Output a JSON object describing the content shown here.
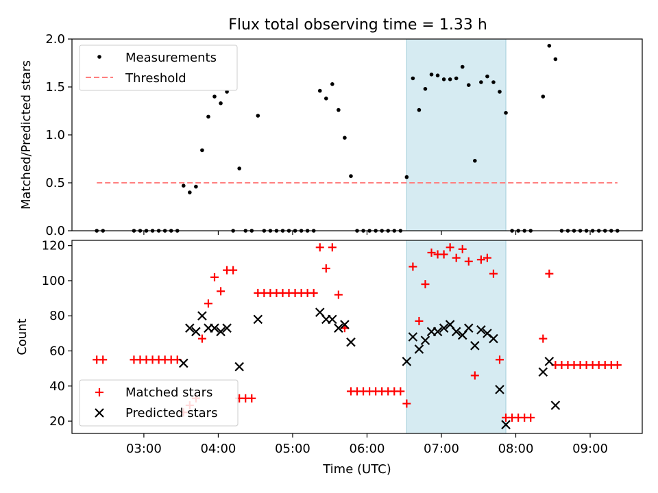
{
  "title": "Flux total observing time = 1.33 h",
  "chart_data": [
    {
      "type": "scatter",
      "ylabel": "Matched/Predicted stars",
      "ylim": [
        0,
        2.0
      ],
      "yticks": [
        "0.0",
        "0.5",
        "1.0",
        "1.5",
        "2.0"
      ],
      "xlim": [
        "02:02",
        "09:42"
      ],
      "highlight_span": [
        "06:32",
        "07:52"
      ],
      "highlight_color": "#add8e6",
      "legend": [
        {
          "label": "Measurements",
          "marker": "dot",
          "color": "#000000"
        },
        {
          "label": "Threshold",
          "marker": "dashed-line",
          "color": "#ff7f7f"
        }
      ],
      "threshold": {
        "value": 0.5,
        "x_range": [
          "02:22",
          "09:22"
        ]
      },
      "series": [
        {
          "name": "Measurements",
          "points": [
            [
              "02:22",
              0
            ],
            [
              "02:27",
              0
            ],
            [
              "02:52",
              0
            ],
            [
              "02:57",
              0
            ],
            [
              "03:02",
              0
            ],
            [
              "03:07",
              0
            ],
            [
              "03:12",
              0
            ],
            [
              "03:17",
              0
            ],
            [
              "03:22",
              0
            ],
            [
              "03:27",
              0
            ],
            [
              "03:32",
              0.47
            ],
            [
              "03:37",
              0.4
            ],
            [
              "03:42",
              0.46
            ],
            [
              "03:47",
              0.84
            ],
            [
              "03:52",
              1.19
            ],
            [
              "03:57",
              1.4
            ],
            [
              "04:02",
              1.33
            ],
            [
              "04:07",
              1.45
            ],
            [
              "04:12",
              0
            ],
            [
              "04:17",
              0.65
            ],
            [
              "04:22",
              0
            ],
            [
              "04:27",
              0
            ],
            [
              "04:32",
              1.2
            ],
            [
              "04:37",
              0
            ],
            [
              "04:42",
              0
            ],
            [
              "04:47",
              0
            ],
            [
              "04:52",
              0
            ],
            [
              "04:57",
              0
            ],
            [
              "05:02",
              0
            ],
            [
              "05:07",
              0
            ],
            [
              "05:12",
              0
            ],
            [
              "05:17",
              0
            ],
            [
              "05:22",
              1.46
            ],
            [
              "05:27",
              1.38
            ],
            [
              "05:32",
              1.53
            ],
            [
              "05:37",
              1.26
            ],
            [
              "05:42",
              0.97
            ],
            [
              "05:47",
              0.57
            ],
            [
              "05:52",
              0
            ],
            [
              "05:57",
              0
            ],
            [
              "06:02",
              0
            ],
            [
              "06:07",
              0
            ],
            [
              "06:12",
              0
            ],
            [
              "06:17",
              0
            ],
            [
              "06:22",
              0
            ],
            [
              "06:27",
              0
            ],
            [
              "06:32",
              0.56
            ],
            [
              "06:37",
              1.59
            ],
            [
              "06:42",
              1.26
            ],
            [
              "06:47",
              1.48
            ],
            [
              "06:52",
              1.63
            ],
            [
              "06:57",
              1.62
            ],
            [
              "07:02",
              1.58
            ],
            [
              "07:07",
              1.58
            ],
            [
              "07:12",
              1.59
            ],
            [
              "07:17",
              1.71
            ],
            [
              "07:22",
              1.52
            ],
            [
              "07:27",
              0.73
            ],
            [
              "07:32",
              1.55
            ],
            [
              "07:37",
              1.61
            ],
            [
              "07:42",
              1.55
            ],
            [
              "07:47",
              1.45
            ],
            [
              "07:52",
              1.23
            ],
            [
              "07:57",
              0
            ],
            [
              "08:02",
              0
            ],
            [
              "08:07",
              0
            ],
            [
              "08:12",
              0
            ],
            [
              "08:22",
              1.4
            ],
            [
              "08:27",
              1.93
            ],
            [
              "08:32",
              1.79
            ],
            [
              "08:37",
              0
            ],
            [
              "08:42",
              0
            ],
            [
              "08:47",
              0
            ],
            [
              "08:52",
              0
            ],
            [
              "08:57",
              0
            ],
            [
              "09:02",
              0
            ],
            [
              "09:07",
              0
            ],
            [
              "09:12",
              0
            ],
            [
              "09:17",
              0
            ],
            [
              "09:22",
              0
            ]
          ]
        }
      ]
    },
    {
      "type": "scatter",
      "ylabel": "Count",
      "xlabel": "Time (UTC)",
      "ylim": [
        13,
        123
      ],
      "yticks": [
        "20",
        "40",
        "60",
        "80",
        "100",
        "120"
      ],
      "xticks": [
        "03:00",
        "04:00",
        "05:00",
        "06:00",
        "07:00",
        "08:00",
        "09:00"
      ],
      "xlim": [
        "02:02",
        "09:42"
      ],
      "highlight_span": [
        "06:32",
        "07:52"
      ],
      "highlight_color": "#add8e6",
      "legend": [
        {
          "label": "Matched stars",
          "marker": "plus",
          "color": "#ff0000"
        },
        {
          "label": "Predicted stars",
          "marker": "x",
          "color": "#000000"
        }
      ],
      "series": [
        {
          "name": "Matched stars",
          "points": [
            [
              "02:22",
              55
            ],
            [
              "02:27",
              55
            ],
            [
              "02:52",
              55
            ],
            [
              "02:57",
              55
            ],
            [
              "03:02",
              55
            ],
            [
              "03:07",
              55
            ],
            [
              "03:12",
              55
            ],
            [
              "03:17",
              55
            ],
            [
              "03:22",
              55
            ],
            [
              "03:27",
              55
            ],
            [
              "03:32",
              25
            ],
            [
              "03:37",
              29
            ],
            [
              "03:42",
              33
            ],
            [
              "03:47",
              67
            ],
            [
              "03:52",
              87
            ],
            [
              "03:57",
              102
            ],
            [
              "04:02",
              94
            ],
            [
              "04:07",
              106
            ],
            [
              "04:12",
              106
            ],
            [
              "04:17",
              33
            ],
            [
              "04:22",
              33
            ],
            [
              "04:27",
              33
            ],
            [
              "04:32",
              93
            ],
            [
              "04:37",
              93
            ],
            [
              "04:42",
              93
            ],
            [
              "04:47",
              93
            ],
            [
              "04:52",
              93
            ],
            [
              "04:57",
              93
            ],
            [
              "05:02",
              93
            ],
            [
              "05:07",
              93
            ],
            [
              "05:12",
              93
            ],
            [
              "05:17",
              93
            ],
            [
              "05:22",
              119
            ],
            [
              "05:27",
              107
            ],
            [
              "05:32",
              119
            ],
            [
              "05:37",
              92
            ],
            [
              "05:42",
              73
            ],
            [
              "05:47",
              37
            ],
            [
              "05:52",
              37
            ],
            [
              "05:57",
              37
            ],
            [
              "06:02",
              37
            ],
            [
              "06:07",
              37
            ],
            [
              "06:12",
              37
            ],
            [
              "06:17",
              37
            ],
            [
              "06:22",
              37
            ],
            [
              "06:27",
              37
            ],
            [
              "06:32",
              30
            ],
            [
              "06:37",
              108
            ],
            [
              "06:42",
              77
            ],
            [
              "06:47",
              98
            ],
            [
              "06:52",
              116
            ],
            [
              "06:57",
              115
            ],
            [
              "07:02",
              115
            ],
            [
              "07:07",
              119
            ],
            [
              "07:12",
              113
            ],
            [
              "07:17",
              118
            ],
            [
              "07:22",
              111
            ],
            [
              "07:27",
              46
            ],
            [
              "07:32",
              112
            ],
            [
              "07:37",
              113
            ],
            [
              "07:42",
              104
            ],
            [
              "07:47",
              55
            ],
            [
              "07:52",
              22
            ],
            [
              "07:57",
              22
            ],
            [
              "08:02",
              22
            ],
            [
              "08:07",
              22
            ],
            [
              "08:12",
              22
            ],
            [
              "08:22",
              67
            ],
            [
              "08:27",
              104
            ],
            [
              "08:32",
              52
            ],
            [
              "08:37",
              52
            ],
            [
              "08:42",
              52
            ],
            [
              "08:47",
              52
            ],
            [
              "08:52",
              52
            ],
            [
              "08:57",
              52
            ],
            [
              "09:02",
              52
            ],
            [
              "09:07",
              52
            ],
            [
              "09:12",
              52
            ],
            [
              "09:17",
              52
            ],
            [
              "09:22",
              52
            ]
          ]
        },
        {
          "name": "Predicted stars",
          "points": [
            [
              "03:32",
              53
            ],
            [
              "03:37",
              73
            ],
            [
              "03:42",
              71
            ],
            [
              "03:47",
              80
            ],
            [
              "03:52",
              73
            ],
            [
              "03:57",
              73
            ],
            [
              "04:02",
              71
            ],
            [
              "04:07",
              73
            ],
            [
              "04:17",
              51
            ],
            [
              "04:32",
              78
            ],
            [
              "05:22",
              82
            ],
            [
              "05:27",
              78
            ],
            [
              "05:32",
              78
            ],
            [
              "05:37",
              73
            ],
            [
              "05:42",
              75
            ],
            [
              "05:47",
              65
            ],
            [
              "06:32",
              54
            ],
            [
              "06:37",
              68
            ],
            [
              "06:42",
              61
            ],
            [
              "06:47",
              66
            ],
            [
              "06:52",
              71
            ],
            [
              "06:57",
              71
            ],
            [
              "07:02",
              73
            ],
            [
              "07:07",
              75
            ],
            [
              "07:12",
              71
            ],
            [
              "07:17",
              69
            ],
            [
              "07:22",
              73
            ],
            [
              "07:27",
              63
            ],
            [
              "07:32",
              72
            ],
            [
              "07:37",
              70
            ],
            [
              "07:42",
              67
            ],
            [
              "07:47",
              38
            ],
            [
              "07:52",
              18
            ],
            [
              "08:22",
              48
            ],
            [
              "08:27",
              54
            ],
            [
              "08:32",
              29
            ]
          ]
        }
      ]
    }
  ]
}
